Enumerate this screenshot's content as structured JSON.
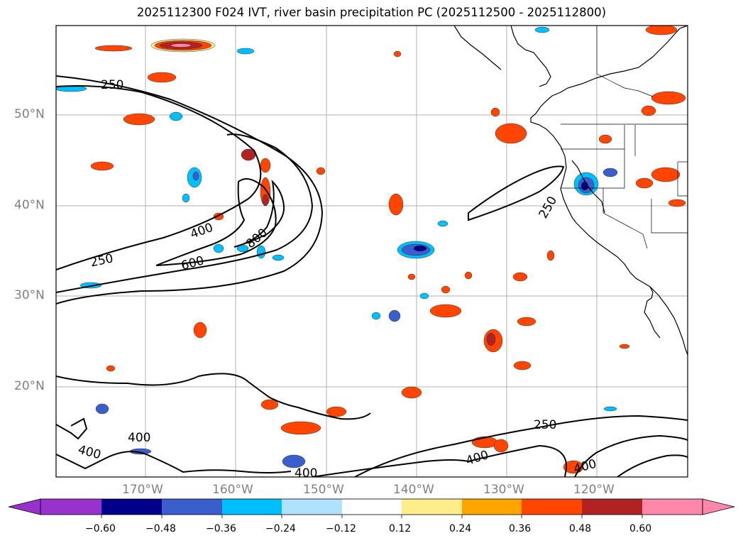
{
  "title": "2025112300 F024 IVT, river basin precipitation PC (2025112500 - 2025112800)",
  "map": {
    "lat_labels": [
      "50°N",
      "40°N",
      "30°N",
      "20°N"
    ],
    "lon_labels": [
      "170°W",
      "160°W",
      "150°W",
      "140°W",
      "130°W",
      "120°W"
    ],
    "contour_labels": [
      "250",
      "400",
      "600",
      "800",
      "250",
      "250",
      "400",
      "400",
      "400",
      "400",
      "250",
      "400"
    ]
  },
  "colorbar": {
    "colors": [
      "#9932CC",
      "#00008B",
      "#3A5FCD",
      "#00BFFF",
      "#B0E2FF",
      "#FFFFFF",
      "#FFEC8B",
      "#FFA500",
      "#FF4500",
      "#B22222",
      "#FF88AA"
    ],
    "tick_labels": [
      "−0.60",
      "−0.48",
      "−0.36",
      "−0.24",
      "−0.12",
      "0.12",
      "0.24",
      "0.36",
      "0.48",
      "0.60"
    ]
  }
}
